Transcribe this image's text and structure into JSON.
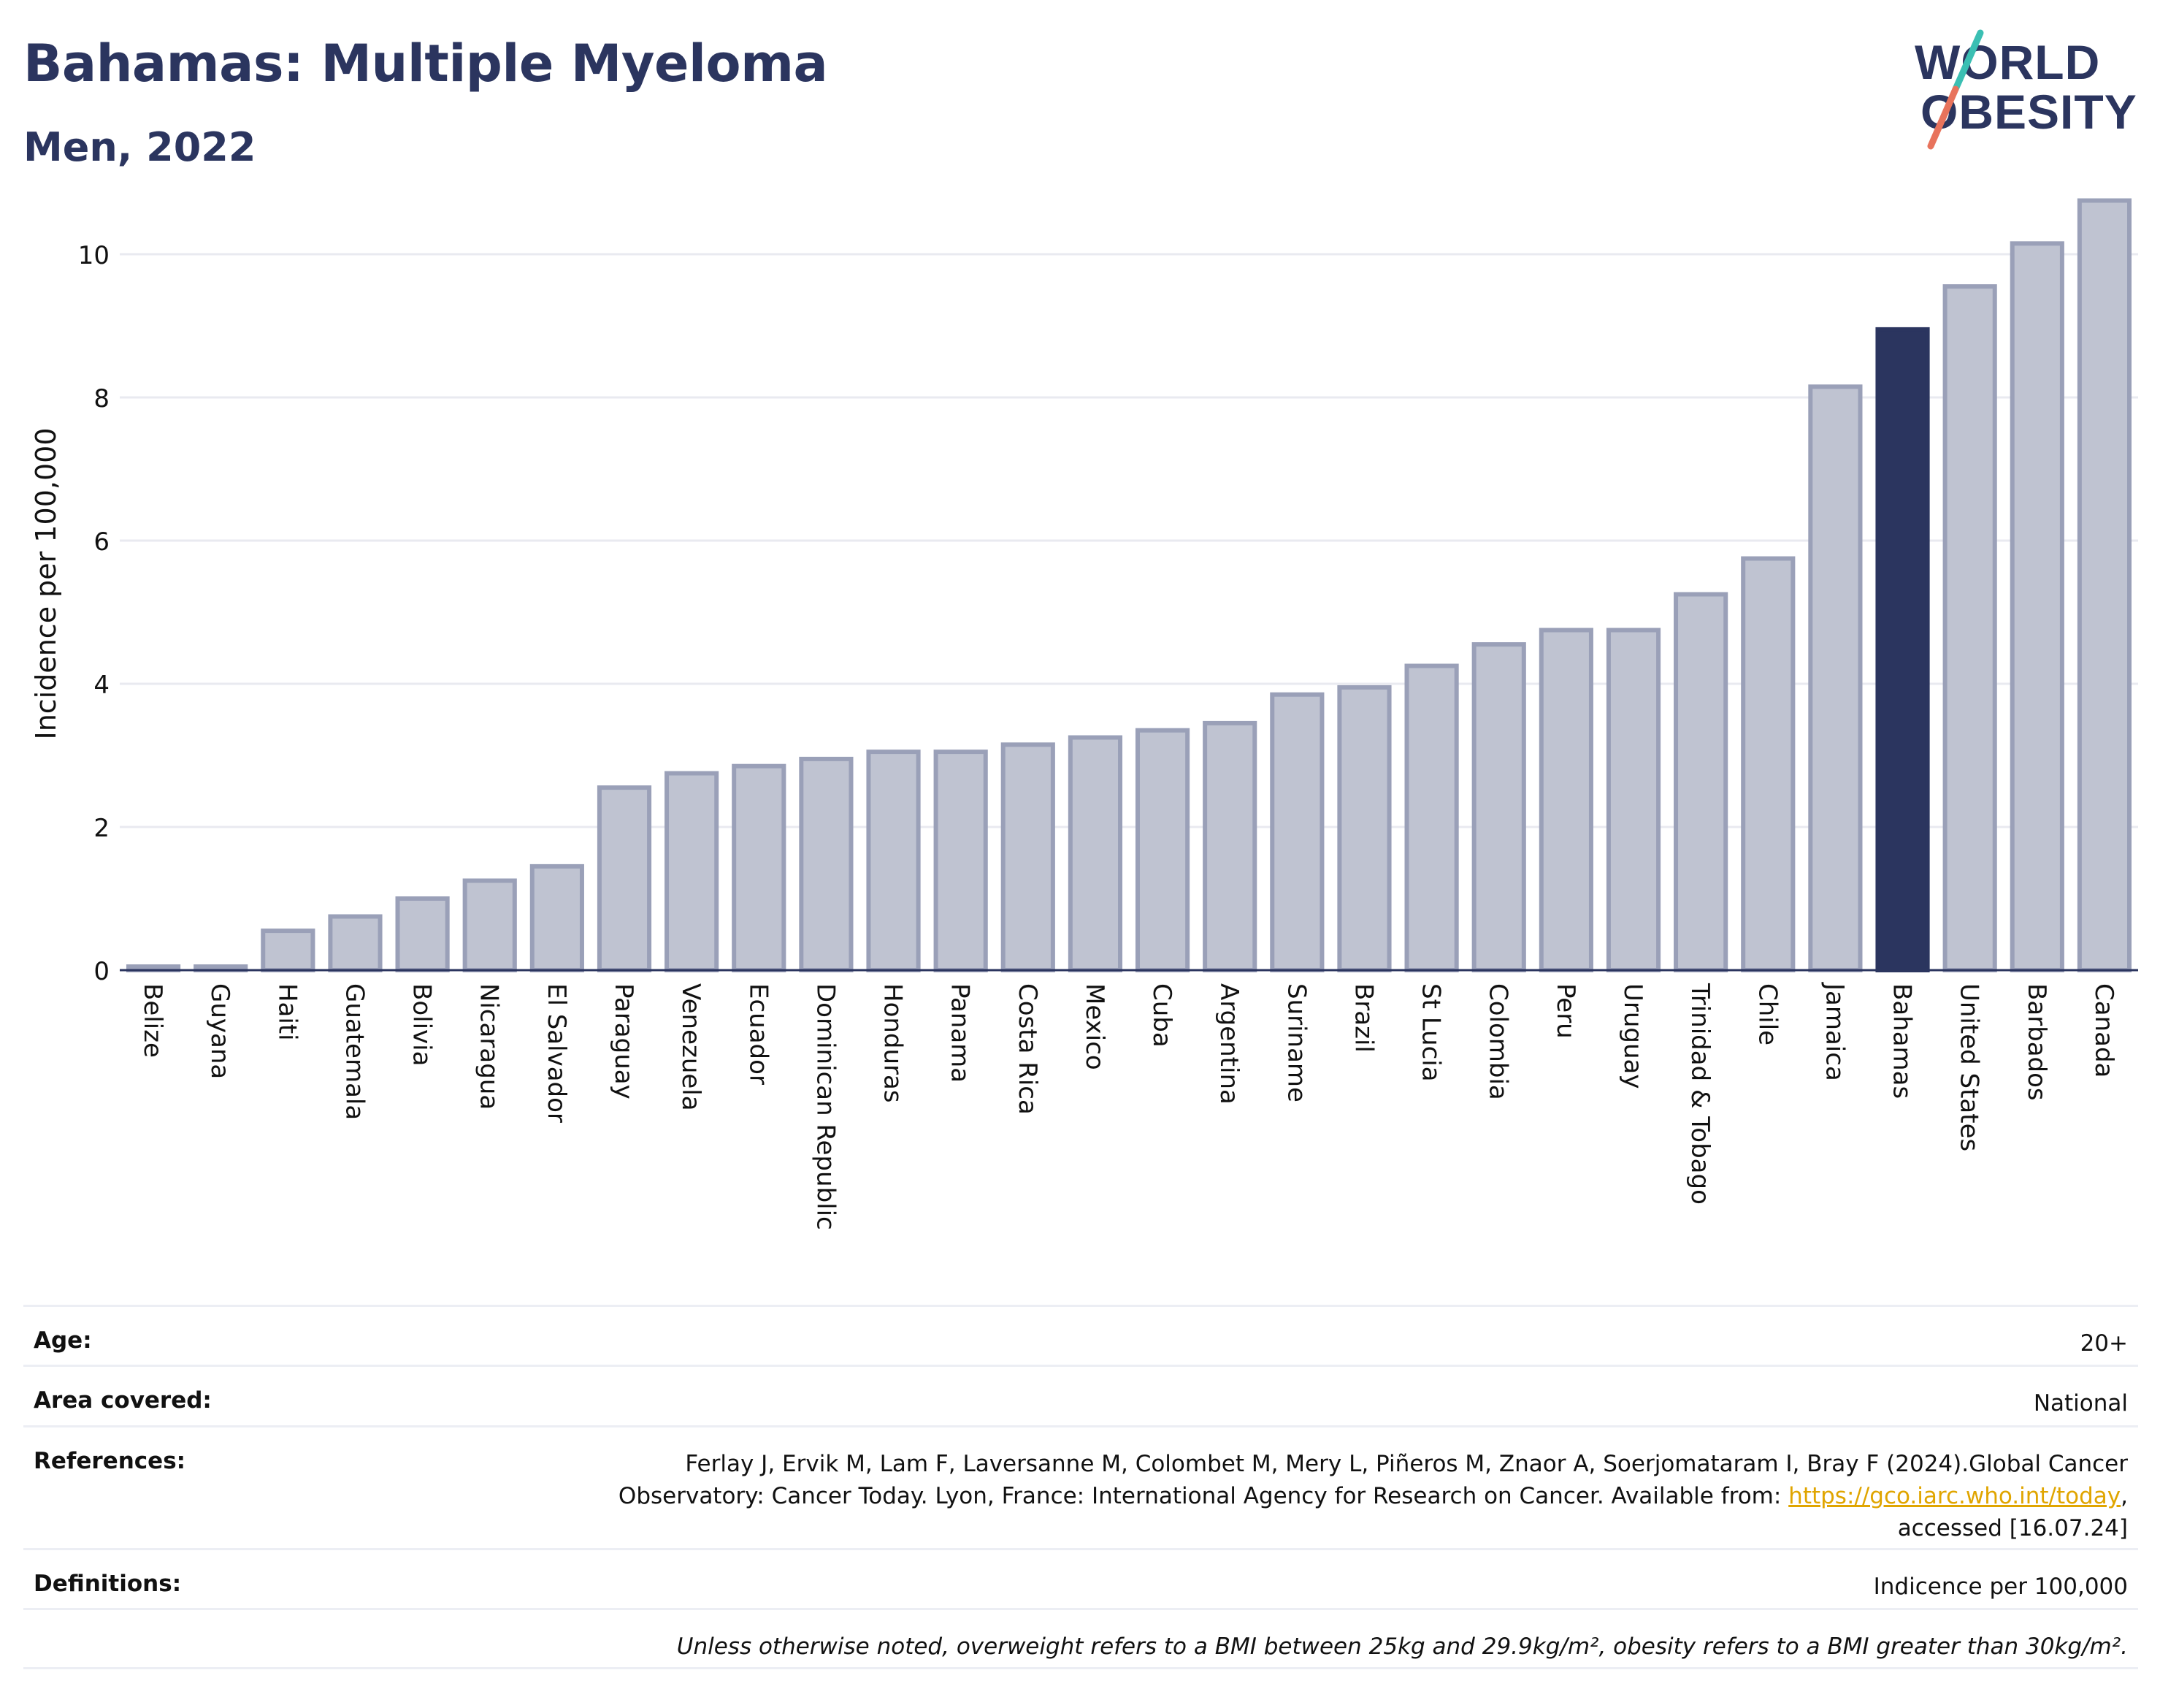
{
  "header": {
    "title": "Bahamas: Multiple Myeloma",
    "subtitle": "Men, 2022",
    "logo_line1": "WORLD",
    "logo_line2": "OBESITY"
  },
  "colors": {
    "highlight": "#2b355f",
    "bar": "#bfc3d1",
    "bar_border": "#9aa0b8",
    "title": "#2b355f",
    "logo_teal": "#3bbfb3",
    "logo_coral": "#e8735c",
    "link": "#e0a500"
  },
  "chart_data": {
    "type": "bar",
    "title": "Bahamas: Multiple Myeloma",
    "subtitle": "Men, 2022",
    "xlabel": "",
    "ylabel": "Incidence per 100,000",
    "ylim": [
      0,
      11
    ],
    "yticks": [
      0,
      2,
      4,
      6,
      8,
      10
    ],
    "grid": true,
    "highlight": "Bahamas",
    "categories": [
      "Belize",
      "Guyana",
      "Haiti",
      "Guatemala",
      "Bolivia",
      "Nicaragua",
      "El Salvador",
      "Paraguay",
      "Venezuela",
      "Ecuador",
      "Dominican Republic",
      "Honduras",
      "Panama",
      "Costa Rica",
      "Mexico",
      "Cuba",
      "Argentina",
      "Suriname",
      "Brazil",
      "St Lucia",
      "Colombia",
      "Peru",
      "Uruguay",
      "Trinidad & Tobago",
      "Chile",
      "Jamaica",
      "Bahamas",
      "United States",
      "Barbados",
      "Canada"
    ],
    "values": [
      0.05,
      0.05,
      0.55,
      0.75,
      1.0,
      1.25,
      1.45,
      2.55,
      2.75,
      2.85,
      2.95,
      3.05,
      3.05,
      3.15,
      3.25,
      3.35,
      3.45,
      3.85,
      3.95,
      4.25,
      4.55,
      4.75,
      4.75,
      5.25,
      5.75,
      8.15,
      8.95,
      9.55,
      10.15,
      10.75
    ]
  },
  "info": {
    "age_label": "Age:",
    "age_value": "20+",
    "area_label": "Area covered:",
    "area_value": "National",
    "references_label": "References:",
    "references_text1": "Ferlay J, Ervik M, Lam F, Laversanne M, Colombet M, Mery L, Piñeros M, Znaor A, Soerjomataram I, Bray F (2024).Global Cancer Observatory: Cancer Today. Lyon, France: International Agency for Research on Cancer. Available from: ",
    "references_link": "https://gco.iarc.who.int/today",
    "references_text2": ", accessed [16.07.24]",
    "definitions_label": "Definitions:",
    "definitions_value": "Indicence per 100,000",
    "note": "Unless otherwise noted, overweight refers to a BMI between 25kg and 29.9kg/m², obesity refers to a BMI greater than 30kg/m²."
  }
}
